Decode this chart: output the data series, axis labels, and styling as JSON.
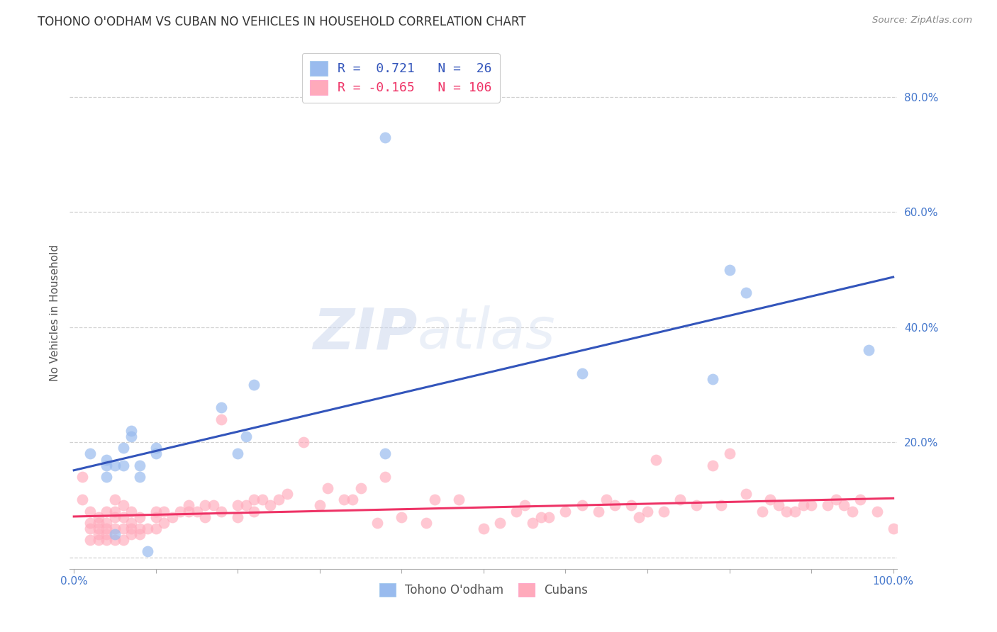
{
  "title": "TOHONO O'ODHAM VS CUBAN NO VEHICLES IN HOUSEHOLD CORRELATION CHART",
  "source": "Source: ZipAtlas.com",
  "ylabel": "No Vehicles in Household",
  "xlim": [
    -0.005,
    1.005
  ],
  "ylim": [
    -0.02,
    0.87
  ],
  "xtick_positions": [
    0.0,
    0.1,
    0.2,
    0.3,
    0.4,
    0.5,
    0.6,
    0.7,
    0.8,
    0.9,
    1.0
  ],
  "xtick_labels_show": {
    "0.0": "0.0%",
    "1.0": "100.0%"
  },
  "ytick_positions": [
    0.0,
    0.2,
    0.4,
    0.6,
    0.8
  ],
  "ytick_labels": [
    "",
    "20.0%",
    "40.0%",
    "60.0%",
    "80.0%"
  ],
  "grid_color": "#cccccc",
  "background_color": "#ffffff",
  "watermark_zip": "ZIP",
  "watermark_atlas": "atlas",
  "legend_R_blue": "0.721",
  "legend_N_blue": "26",
  "legend_R_pink": "-0.165",
  "legend_N_pink": "106",
  "blue_scatter_color": "#99bbee",
  "pink_scatter_color": "#ffaabb",
  "blue_line_color": "#3355bb",
  "pink_line_color": "#ee3366",
  "tohono_x": [
    0.02,
    0.04,
    0.04,
    0.04,
    0.05,
    0.05,
    0.06,
    0.06,
    0.07,
    0.07,
    0.08,
    0.08,
    0.09,
    0.1,
    0.1,
    0.18,
    0.2,
    0.21,
    0.22,
    0.38,
    0.38,
    0.62,
    0.78,
    0.8,
    0.82,
    0.97
  ],
  "tohono_y": [
    0.18,
    0.14,
    0.16,
    0.17,
    0.04,
    0.16,
    0.16,
    0.19,
    0.21,
    0.22,
    0.14,
    0.16,
    0.01,
    0.19,
    0.18,
    0.26,
    0.18,
    0.21,
    0.3,
    0.18,
    0.73,
    0.32,
    0.31,
    0.5,
    0.46,
    0.36
  ],
  "cuban_x": [
    0.01,
    0.01,
    0.02,
    0.02,
    0.02,
    0.02,
    0.03,
    0.03,
    0.03,
    0.03,
    0.03,
    0.04,
    0.04,
    0.04,
    0.04,
    0.04,
    0.05,
    0.05,
    0.05,
    0.05,
    0.05,
    0.06,
    0.06,
    0.06,
    0.06,
    0.07,
    0.07,
    0.07,
    0.07,
    0.08,
    0.08,
    0.08,
    0.09,
    0.1,
    0.1,
    0.1,
    0.11,
    0.11,
    0.12,
    0.13,
    0.14,
    0.14,
    0.15,
    0.16,
    0.16,
    0.17,
    0.18,
    0.18,
    0.2,
    0.2,
    0.21,
    0.22,
    0.22,
    0.23,
    0.24,
    0.25,
    0.26,
    0.28,
    0.3,
    0.31,
    0.33,
    0.34,
    0.35,
    0.37,
    0.38,
    0.4,
    0.43,
    0.44,
    0.47,
    0.5,
    0.52,
    0.54,
    0.55,
    0.56,
    0.57,
    0.58,
    0.6,
    0.62,
    0.64,
    0.65,
    0.66,
    0.68,
    0.69,
    0.7,
    0.71,
    0.72,
    0.74,
    0.76,
    0.78,
    0.79,
    0.8,
    0.82,
    0.84,
    0.85,
    0.86,
    0.87,
    0.88,
    0.89,
    0.9,
    0.92,
    0.93,
    0.94,
    0.95,
    0.96,
    0.98,
    1.0
  ],
  "cuban_y": [
    0.1,
    0.14,
    0.03,
    0.05,
    0.06,
    0.08,
    0.03,
    0.04,
    0.05,
    0.06,
    0.07,
    0.03,
    0.04,
    0.05,
    0.06,
    0.08,
    0.03,
    0.05,
    0.07,
    0.08,
    0.1,
    0.03,
    0.05,
    0.07,
    0.09,
    0.04,
    0.05,
    0.06,
    0.08,
    0.04,
    0.05,
    0.07,
    0.05,
    0.05,
    0.07,
    0.08,
    0.06,
    0.08,
    0.07,
    0.08,
    0.08,
    0.09,
    0.08,
    0.07,
    0.09,
    0.09,
    0.08,
    0.24,
    0.07,
    0.09,
    0.09,
    0.08,
    0.1,
    0.1,
    0.09,
    0.1,
    0.11,
    0.2,
    0.09,
    0.12,
    0.1,
    0.1,
    0.12,
    0.06,
    0.14,
    0.07,
    0.06,
    0.1,
    0.1,
    0.05,
    0.06,
    0.08,
    0.09,
    0.06,
    0.07,
    0.07,
    0.08,
    0.09,
    0.08,
    0.1,
    0.09,
    0.09,
    0.07,
    0.08,
    0.17,
    0.08,
    0.1,
    0.09,
    0.16,
    0.09,
    0.18,
    0.11,
    0.08,
    0.1,
    0.09,
    0.08,
    0.08,
    0.09,
    0.09,
    0.09,
    0.1,
    0.09,
    0.08,
    0.1,
    0.08,
    0.05
  ]
}
